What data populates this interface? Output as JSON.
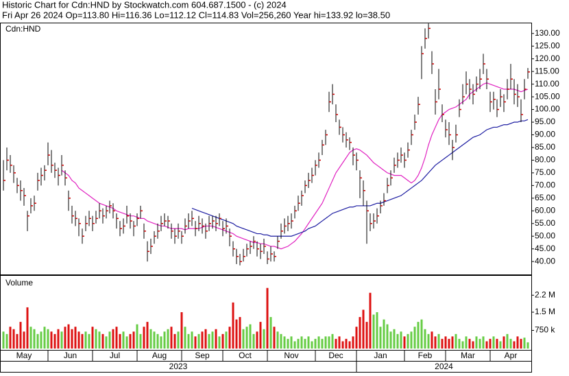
{
  "chart_data": {
    "type": "ohlc",
    "title": "Historic Chart for Cdn:HND by Stockwatch.com 604.687.1500 - (c) 2024",
    "subtitle": "Fri Apr 26 2024   Op=113.80   Hi=116.36   Lo=112.12   Cl=114.83   Vol=256,260   Year hi=133.92   lo=38.50",
    "symbol_label": "Cdn:HND",
    "xlim": [
      -1,
      154
    ],
    "xticks": [
      {
        "value": -1,
        "label": "May"
      },
      {
        "value": 13,
        "label": "Jun"
      },
      {
        "value": 26,
        "label": "Jul"
      },
      {
        "value": 39,
        "label": "Aug"
      },
      {
        "value": 52,
        "label": "Sep"
      },
      {
        "value": 64,
        "label": "Oct"
      },
      {
        "value": 77,
        "label": "Nov"
      },
      {
        "value": 91,
        "label": "Dec"
      },
      {
        "value": 103,
        "label": "Jan"
      },
      {
        "value": 117,
        "label": "Feb"
      },
      {
        "value": 129,
        "label": "Mar"
      },
      {
        "value": 142,
        "label": "Apr"
      }
    ],
    "year_ticks": [
      {
        "value": -1,
        "label": "2023"
      },
      {
        "value": 103,
        "label": "2024"
      }
    ],
    "ylim": [
      34.9,
      134.0
    ],
    "yticks": [
      {
        "value": 40,
        "label": "40.00"
      },
      {
        "value": 45,
        "label": "45.00"
      },
      {
        "value": 50,
        "label": "50.00"
      },
      {
        "value": 55,
        "label": "55.00"
      },
      {
        "value": 60,
        "label": "60.00"
      },
      {
        "value": 65,
        "label": "65.00"
      },
      {
        "value": 70,
        "label": "70.00"
      },
      {
        "value": 75,
        "label": "75.00"
      },
      {
        "value": 80,
        "label": "80.00"
      },
      {
        "value": 85,
        "label": "85.00"
      },
      {
        "value": 90,
        "label": "90.00"
      },
      {
        "value": 95,
        "label": "95.00"
      },
      {
        "value": 100,
        "label": "100.00"
      },
      {
        "value": 105,
        "label": "105.00"
      },
      {
        "value": 110,
        "label": "110.00"
      },
      {
        "value": 115,
        "label": "115.00"
      },
      {
        "value": 120,
        "label": "120.00"
      },
      {
        "value": 125,
        "label": "125.00"
      },
      {
        "value": 130,
        "label": "130.00"
      }
    ],
    "bar_color": "#000000",
    "close_color": "#cc0000",
    "high": [
      80,
      85,
      82,
      78,
      73,
      72,
      69,
      60,
      65,
      66,
      75,
      77,
      78,
      87,
      84,
      79,
      77,
      82,
      76,
      68,
      62,
      60,
      57,
      53,
      58,
      60,
      58,
      60,
      63,
      61,
      62,
      64,
      63,
      59,
      56,
      57,
      62,
      59,
      56,
      59,
      62,
      55,
      48,
      49,
      52,
      55,
      58,
      59,
      58,
      55,
      53,
      55,
      52,
      57,
      59,
      60,
      56,
      58,
      57,
      55,
      58,
      58,
      58,
      59,
      56,
      57,
      53,
      48,
      45,
      43,
      45,
      47,
      48,
      50,
      48,
      47,
      49,
      44,
      46,
      44,
      50,
      55,
      57,
      58,
      59,
      62,
      66,
      68,
      72,
      75,
      77,
      80,
      83,
      88,
      92,
      107,
      110,
      102,
      96,
      93,
      91,
      89,
      85,
      83,
      76,
      72,
      64,
      59,
      59,
      61,
      64,
      67,
      73,
      76,
      81,
      83,
      85,
      83,
      87,
      92,
      98,
      105,
      125,
      132,
      133.92,
      123,
      108,
      116,
      102,
      96,
      95,
      88,
      94,
      104,
      110,
      115,
      112,
      110,
      113,
      116,
      122,
      116,
      107,
      107,
      104,
      108,
      106,
      112,
      118,
      112,
      110,
      104,
      112,
      116.36
    ],
    "low": [
      68,
      76,
      75,
      71,
      67,
      64,
      62,
      52,
      59,
      60,
      68,
      70,
      72,
      78,
      75,
      73,
      70,
      74,
      70,
      60,
      55,
      54,
      50,
      47,
      52,
      54,
      52,
      55,
      57,
      55,
      57,
      59,
      57,
      53,
      50,
      51,
      55,
      53,
      50,
      54,
      57,
      49,
      40,
      43,
      47,
      49,
      52,
      54,
      53,
      49,
      47,
      49,
      47,
      51,
      53,
      54,
      50,
      52,
      51,
      49,
      52,
      53,
      52,
      54,
      50,
      51,
      46,
      42,
      39,
      38.5,
      40,
      42,
      43,
      45,
      42,
      41,
      43,
      39,
      40,
      40,
      45,
      49,
      51,
      52,
      53,
      57,
      60,
      62,
      67,
      69,
      71,
      74,
      77,
      82,
      86,
      99,
      102,
      95,
      90,
      87,
      85,
      84,
      78,
      76,
      65,
      62,
      47,
      52,
      53,
      55,
      59,
      62,
      67,
      70,
      75,
      77,
      79,
      77,
      81,
      86,
      92,
      98,
      112,
      124,
      128,
      114,
      98,
      104,
      95,
      89,
      86,
      80,
      87,
      97,
      102,
      106,
      104,
      102,
      107,
      108,
      114,
      108,
      99,
      100,
      97,
      101,
      99,
      104,
      108,
      102,
      101,
      95,
      104,
      112.12
    ],
    "close": [
      72,
      80,
      78,
      75,
      70,
      68,
      66,
      58,
      62,
      63,
      72,
      74,
      76,
      82,
      78,
      76,
      74,
      78,
      73,
      65,
      58,
      57,
      55,
      50,
      55,
      57,
      55,
      57,
      60,
      58,
      60,
      62,
      60,
      57,
      53,
      54,
      58,
      56,
      54,
      57,
      60,
      52,
      44,
      46,
      50,
      52,
      55,
      56,
      56,
      52,
      50,
      52,
      50,
      54,
      56,
      57,
      53,
      55,
      54,
      52,
      55,
      56,
      55,
      57,
      53,
      54,
      50,
      45,
      42,
      40,
      42,
      45,
      46,
      48,
      45,
      44,
      46,
      41,
      43,
      42,
      48,
      52,
      54,
      55,
      56,
      60,
      63,
      66,
      70,
      72,
      74,
      78,
      80,
      86,
      90,
      103,
      106,
      98,
      93,
      90,
      88,
      87,
      82,
      80,
      73,
      68,
      60,
      55,
      56,
      58,
      62,
      64,
      70,
      73,
      78,
      80,
      82,
      80,
      84,
      90,
      95,
      102,
      122,
      128,
      132,
      118,
      103,
      108,
      98,
      92,
      90,
      85,
      90,
      100,
      105,
      110,
      108,
      106,
      110,
      112,
      118,
      112,
      103,
      104,
      100,
      105,
      103,
      108,
      112,
      106,
      105,
      98,
      108,
      114.83
    ],
    "moving_averages": [
      {
        "color": "#e020c0",
        "values": [
          null,
          null,
          null,
          null,
          null,
          null,
          null,
          null,
          null,
          null,
          null,
          null,
          null,
          null,
          null,
          null,
          null,
          76,
          75,
          74,
          72,
          71,
          69,
          68,
          67,
          66,
          65,
          64,
          63,
          62.5,
          62,
          61.5,
          61,
          60,
          59.5,
          59,
          58.5,
          58,
          58,
          57.5,
          57,
          57,
          56,
          55.5,
          55,
          54.5,
          54,
          54,
          53.5,
          53,
          53,
          53,
          53,
          52.5,
          53,
          53,
          53,
          53,
          53.5,
          54,
          54,
          54,
          53.5,
          53,
          52.5,
          52,
          51.5,
          51,
          50,
          49.5,
          49,
          48.5,
          48,
          47.5,
          47.5,
          47,
          47,
          46.5,
          46,
          46,
          45.5,
          45,
          45.5,
          46,
          47,
          48,
          49.5,
          51,
          53,
          55,
          57,
          59,
          61,
          63,
          66,
          69,
          72,
          75,
          77,
          79,
          81,
          83,
          84,
          84.5,
          84,
          83,
          82,
          80.5,
          79,
          78,
          77,
          76,
          75,
          74.5,
          74,
          74,
          74,
          73,
          72,
          71,
          72,
          74,
          77,
          81,
          86,
          90,
          93,
          96,
          98,
          99,
          100,
          100.5,
          101,
          102,
          103,
          104,
          106,
          107,
          108,
          109,
          110,
          110.5,
          110,
          109.5,
          109,
          108.5,
          108,
          108,
          108,
          108,
          107.5,
          107,
          107.5,
          108
        ]
      },
      {
        "color": "#1a1aa0",
        "values": [
          null,
          null,
          null,
          null,
          null,
          null,
          null,
          null,
          null,
          null,
          null,
          null,
          null,
          null,
          null,
          null,
          null,
          null,
          null,
          null,
          null,
          null,
          null,
          null,
          null,
          null,
          null,
          null,
          null,
          null,
          null,
          null,
          null,
          null,
          null,
          null,
          null,
          null,
          null,
          null,
          null,
          null,
          null,
          null,
          null,
          null,
          null,
          null,
          null,
          null,
          null,
          null,
          null,
          null,
          null,
          61,
          60.5,
          60,
          59.5,
          59,
          58.5,
          58,
          57.5,
          57,
          56.5,
          56,
          55.5,
          55,
          54,
          53.5,
          53,
          52.5,
          52,
          51.5,
          51,
          51,
          50.5,
          50.5,
          50,
          50,
          50,
          50,
          50,
          50,
          50,
          50.5,
          51,
          51.5,
          52,
          53,
          53.5,
          54,
          55,
          56,
          57,
          58,
          59,
          59.5,
          60,
          60.5,
          61,
          61.5,
          61.5,
          62,
          62,
          62,
          62,
          62,
          62.5,
          63,
          63,
          63.5,
          64,
          64.5,
          65,
          65.5,
          66,
          67,
          68,
          69,
          70,
          71,
          72,
          73.5,
          75,
          76.5,
          78,
          79,
          80,
          81,
          82,
          83,
          84,
          85,
          86,
          87,
          88,
          89,
          89.5,
          90,
          91,
          92,
          92.5,
          93,
          93,
          93.5,
          94,
          94,
          94.5,
          95,
          95,
          95.5,
          95.5,
          96
        ]
      }
    ],
    "volume": {
      "label": "Volume",
      "ylim": [
        0,
        3000000
      ],
      "yticks": [
        {
          "value": 750000,
          "label": "750 k"
        },
        {
          "value": 1500000,
          "label": "1.5 M"
        },
        {
          "value": 2200000,
          "label": "2.2 M"
        }
      ],
      "up_color": "#66cc44",
      "down_color": "#dd1111",
      "values": [
        700000,
        600000,
        900000,
        800000,
        600000,
        1100000,
        700000,
        1700000,
        900000,
        800000,
        600000,
        700000,
        900000,
        800000,
        700000,
        600000,
        800000,
        700000,
        900000,
        1000000,
        800000,
        900000,
        700000,
        600000,
        700000,
        600000,
        900000,
        800000,
        700000,
        600000,
        500000,
        700000,
        800000,
        900000,
        600000,
        700000,
        500000,
        600000,
        700000,
        1000000,
        600000,
        900000,
        1100000,
        800000,
        700000,
        600000,
        500000,
        700000,
        800000,
        900000,
        600000,
        700000,
        1500000,
        900000,
        600000,
        700000,
        500000,
        600000,
        700000,
        800000,
        600000,
        700000,
        800000,
        500000,
        600000,
        700000,
        900000,
        1900000,
        1200000,
        1300000,
        800000,
        900000,
        1000000,
        600000,
        700000,
        1100000,
        800000,
        2500000,
        1300000,
        900000,
        700000,
        600000,
        500000,
        400000,
        500000,
        300000,
        400000,
        500000,
        400000,
        500000,
        300000,
        400000,
        500000,
        400000,
        500000,
        500000,
        600000,
        400000,
        500000,
        300000,
        400000,
        300000,
        500000,
        900000,
        1300000,
        1600000,
        1100000,
        2300000,
        1400000,
        1500000,
        900000,
        1200000,
        1000000,
        700000,
        800000,
        600000,
        700000,
        500000,
        600000,
        700000,
        900000,
        1100000,
        1200000,
        800000,
        600000,
        700000,
        500000,
        600000,
        400000,
        500000,
        400000,
        500000,
        600000,
        400000,
        300000,
        500000,
        400000,
        300000,
        500000,
        400000,
        500000,
        300000,
        400000,
        500000,
        400000,
        300000,
        500000,
        600000,
        400000,
        300000,
        500000,
        400000,
        450000,
        256260
      ]
    }
  }
}
